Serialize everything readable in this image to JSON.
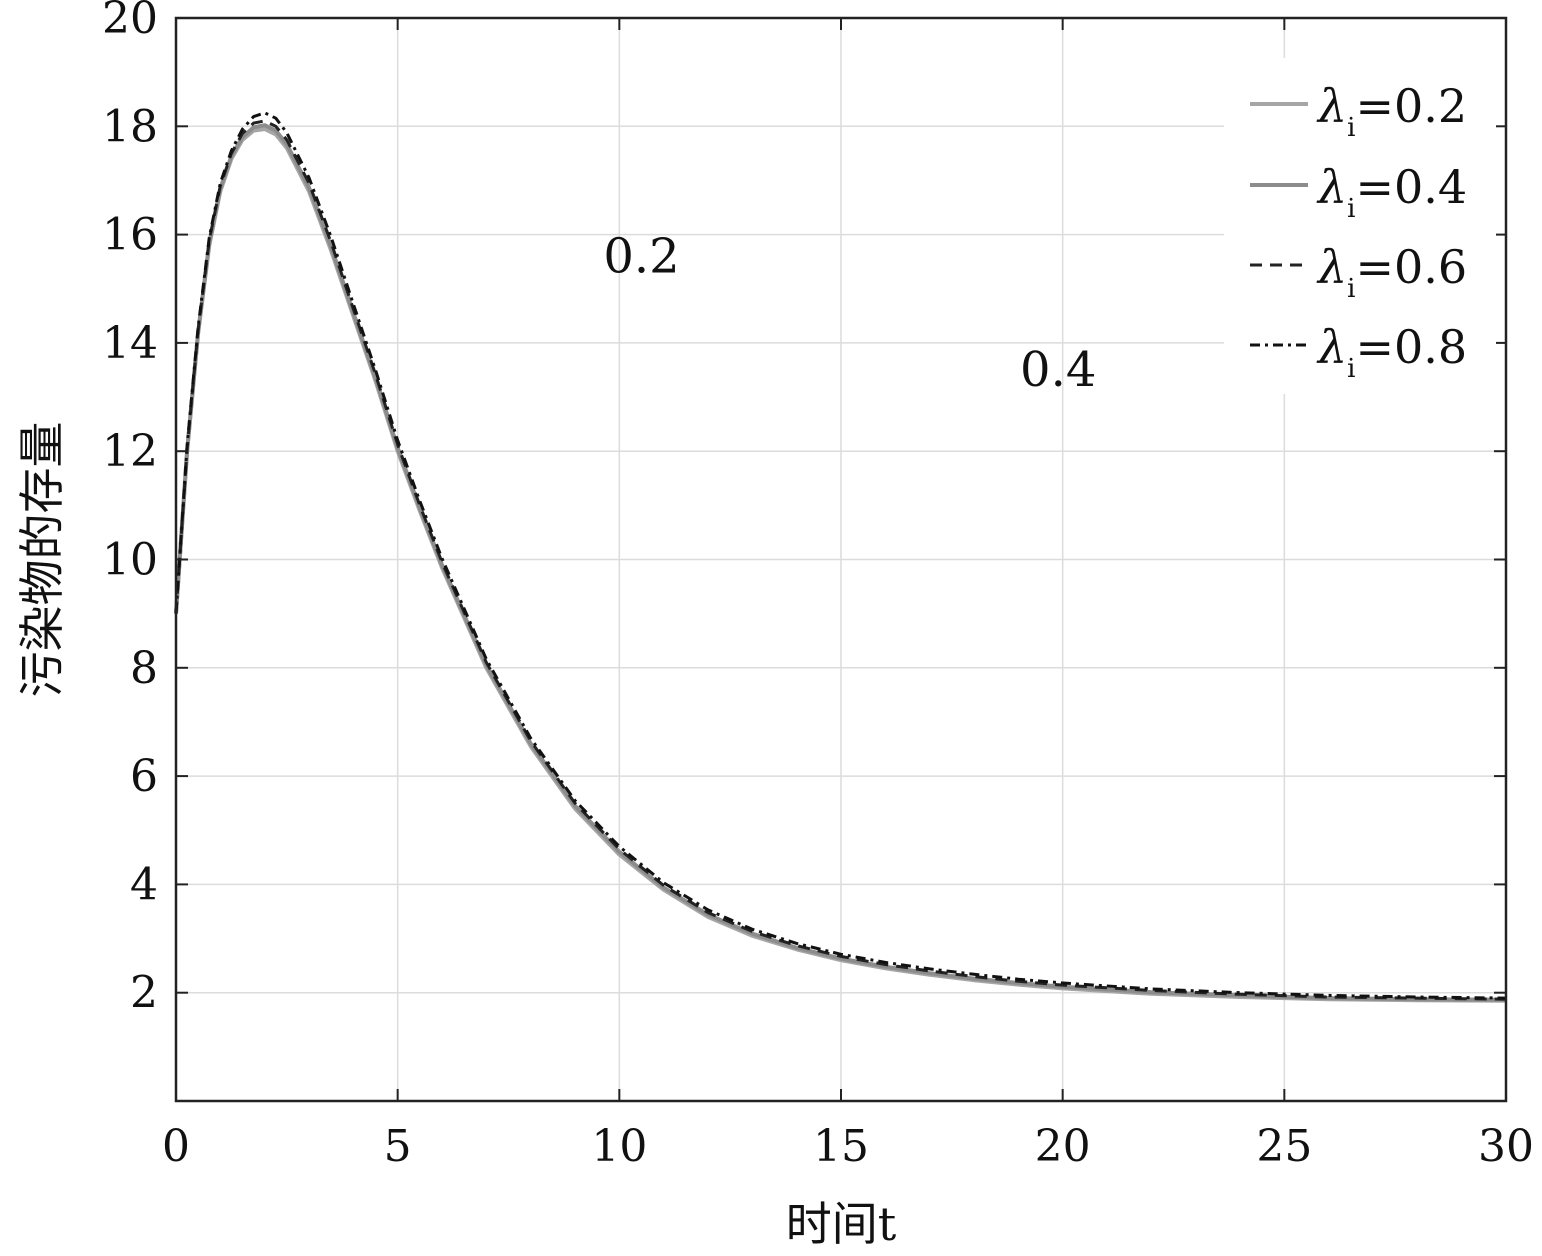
{
  "chart_data": {
    "type": "line",
    "xlabel": "时间t",
    "ylabel": "污染物的存量",
    "xlim": [
      0,
      30
    ],
    "ylim": [
      0,
      20
    ],
    "x_ticks": [
      0,
      5,
      10,
      15,
      20,
      25,
      30
    ],
    "x_tick_labels": [
      "0",
      "5",
      "10",
      "15",
      "20",
      "25",
      "30"
    ],
    "y_ticks": [
      2,
      4,
      6,
      8,
      10,
      12,
      14,
      16,
      18,
      20
    ],
    "y_tick_labels": [
      "2",
      "4",
      "6",
      "8",
      "10",
      "12",
      "14",
      "16",
      "18",
      "20"
    ],
    "grid": true,
    "legend_position": "top-right",
    "x": [
      0,
      0.25,
      0.5,
      0.75,
      1,
      1.25,
      1.5,
      1.75,
      2,
      2.25,
      2.5,
      3,
      3.5,
      4,
      4.5,
      5,
      5.5,
      6,
      7,
      8,
      9,
      10,
      11,
      12,
      13,
      14,
      15,
      16,
      17,
      18,
      19,
      20,
      22,
      24,
      26,
      28,
      30
    ],
    "series": [
      {
        "name": "λi=0.2",
        "color": "#a6a6a6",
        "dash": "solid",
        "values": [
          9.0,
          12.0,
          14.2,
          15.8,
          16.8,
          17.4,
          17.75,
          17.92,
          17.95,
          17.85,
          17.6,
          16.8,
          15.7,
          14.5,
          13.3,
          12.0,
          10.9,
          9.85,
          8.0,
          6.55,
          5.4,
          4.55,
          3.9,
          3.4,
          3.05,
          2.8,
          2.6,
          2.45,
          2.33,
          2.23,
          2.15,
          2.08,
          1.98,
          1.92,
          1.88,
          1.86,
          1.85
        ]
      },
      {
        "name": "λi=0.4",
        "color": "#8c8c8c",
        "dash": "solid",
        "values": [
          9.0,
          12.0,
          14.2,
          15.85,
          16.85,
          17.45,
          17.8,
          17.98,
          18.02,
          17.92,
          17.67,
          16.87,
          15.77,
          14.56,
          13.35,
          12.06,
          10.95,
          9.9,
          8.05,
          6.6,
          5.45,
          4.6,
          3.94,
          3.44,
          3.09,
          2.83,
          2.63,
          2.48,
          2.36,
          2.26,
          2.18,
          2.11,
          2.01,
          1.95,
          1.9,
          1.88,
          1.87
        ]
      },
      {
        "name": "λi=0.6",
        "color": "#222222",
        "dash": "dashed",
        "values": [
          9.0,
          12.05,
          14.25,
          15.9,
          16.9,
          17.5,
          17.87,
          18.06,
          18.1,
          18.0,
          17.75,
          16.95,
          15.85,
          14.63,
          13.42,
          12.12,
          11.0,
          9.95,
          8.1,
          6.65,
          5.5,
          4.65,
          3.98,
          3.48,
          3.13,
          2.87,
          2.67,
          2.52,
          2.4,
          2.3,
          2.21,
          2.14,
          2.04,
          1.97,
          1.92,
          1.9,
          1.88
        ]
      },
      {
        "name": "λi=0.8",
        "color": "#111111",
        "dash": "dashdot",
        "values": [
          9.0,
          12.1,
          14.3,
          15.95,
          16.95,
          17.55,
          17.95,
          18.18,
          18.25,
          18.15,
          17.88,
          17.05,
          15.95,
          14.72,
          13.5,
          12.2,
          11.08,
          10.02,
          8.16,
          6.7,
          5.55,
          4.7,
          4.03,
          3.53,
          3.17,
          2.91,
          2.71,
          2.56,
          2.44,
          2.34,
          2.25,
          2.18,
          2.07,
          2.0,
          1.95,
          1.92,
          1.9
        ]
      }
    ],
    "annotations": [
      {
        "text": "0.2",
        "x": 10.5,
        "y": 15.3
      },
      {
        "text": "0.4",
        "x": 19.9,
        "y": 13.2
      }
    ]
  }
}
